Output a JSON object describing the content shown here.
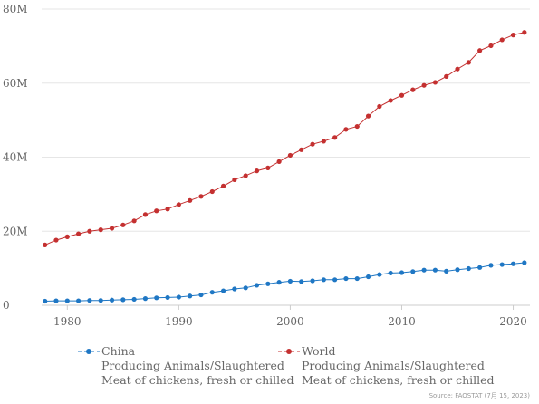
{
  "chart_data": {
    "type": "line",
    "x": [
      1978,
      1979,
      1980,
      1981,
      1982,
      1983,
      1984,
      1985,
      1986,
      1987,
      1988,
      1989,
      1990,
      1991,
      1992,
      1993,
      1994,
      1995,
      1996,
      1997,
      1998,
      1999,
      2000,
      2001,
      2002,
      2003,
      2004,
      2005,
      2006,
      2007,
      2008,
      2009,
      2010,
      2011,
      2012,
      2013,
      2014,
      2015,
      2016,
      2017,
      2018,
      2019,
      2020,
      2021
    ],
    "series": [
      {
        "name": "China",
        "label_lines": [
          "China",
          "Producing Animals/Slaughtered",
          "Meat of chickens, fresh or chilled"
        ],
        "color": "#1f77c4",
        "values": [
          1.1,
          1.2,
          1.2,
          1.2,
          1.3,
          1.3,
          1.4,
          1.5,
          1.6,
          1.8,
          2.0,
          2.1,
          2.2,
          2.5,
          2.8,
          3.5,
          3.9,
          4.4,
          4.7,
          5.4,
          5.8,
          6.2,
          6.5,
          6.4,
          6.6,
          6.9,
          6.9,
          7.2,
          7.2,
          7.7,
          8.3,
          8.7,
          8.8,
          9.1,
          9.5,
          9.5,
          9.2,
          9.6,
          9.9,
          10.2,
          10.8,
          11.0,
          11.2,
          11.5
        ]
      },
      {
        "name": "World",
        "label_lines": [
          "World",
          "Producing Animals/Slaughtered",
          "Meat of chickens, fresh or chilled"
        ],
        "color": "#c43030",
        "values": [
          16.3,
          17.6,
          18.5,
          19.3,
          20.0,
          20.4,
          20.8,
          21.7,
          22.8,
          24.5,
          25.5,
          26.0,
          27.2,
          28.3,
          29.4,
          30.7,
          32.2,
          33.9,
          35.0,
          36.3,
          37.1,
          38.8,
          40.5,
          42.0,
          43.5,
          44.3,
          45.3,
          47.5,
          48.3,
          51.1,
          53.7,
          55.3,
          56.7,
          58.2,
          59.4,
          60.2,
          61.8,
          63.8,
          65.6,
          68.8,
          70.1,
          71.7,
          73.0,
          73.7
        ]
      }
    ],
    "y_ticks": [
      "0",
      "20M",
      "40M",
      "60M",
      "80M"
    ],
    "y_tick_values": [
      0,
      20,
      40,
      60,
      80
    ],
    "x_ticks": [
      "1980",
      "1990",
      "2000",
      "2010",
      "2020"
    ],
    "x_tick_values": [
      1980,
      1990,
      2000,
      2010,
      2020
    ],
    "xlim": [
      1977.7,
      2021.5
    ],
    "ylim": [
      0,
      80
    ],
    "grid": "horizontal",
    "legend_position": "bottom",
    "source": "Source: FAOSTAT (7月 15, 2023)"
  }
}
